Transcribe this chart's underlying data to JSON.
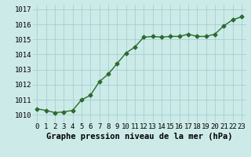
{
  "x": [
    0,
    1,
    2,
    3,
    4,
    5,
    6,
    7,
    8,
    9,
    10,
    11,
    12,
    13,
    14,
    15,
    16,
    17,
    18,
    19,
    20,
    21,
    22,
    23
  ],
  "y": [
    1010.4,
    1010.3,
    1010.15,
    1010.2,
    1010.3,
    1011.0,
    1011.3,
    1012.2,
    1012.7,
    1013.4,
    1014.1,
    1014.5,
    1015.15,
    1015.2,
    1015.15,
    1015.2,
    1015.2,
    1015.35,
    1015.2,
    1015.2,
    1015.35,
    1015.9,
    1016.3,
    1016.5
  ],
  "line_color": "#2d6a2d",
  "marker": "D",
  "marker_size": 2.5,
  "bg_color": "#cceae8",
  "grid_color": "#99cccc",
  "xlabel": "Graphe pression niveau de la mer (hPa)",
  "xlabel_fontsize": 7.5,
  "yticks": [
    1010,
    1011,
    1012,
    1013,
    1014,
    1015,
    1016,
    1017
  ],
  "xticks": [
    0,
    1,
    2,
    3,
    4,
    5,
    6,
    7,
    8,
    9,
    10,
    11,
    12,
    13,
    14,
    15,
    16,
    17,
    18,
    19,
    20,
    21,
    22,
    23
  ],
  "ylim": [
    1009.5,
    1017.3
  ],
  "xlim": [
    -0.5,
    23.5
  ],
  "tick_fontsize": 6.5,
  "line_width": 1.0
}
